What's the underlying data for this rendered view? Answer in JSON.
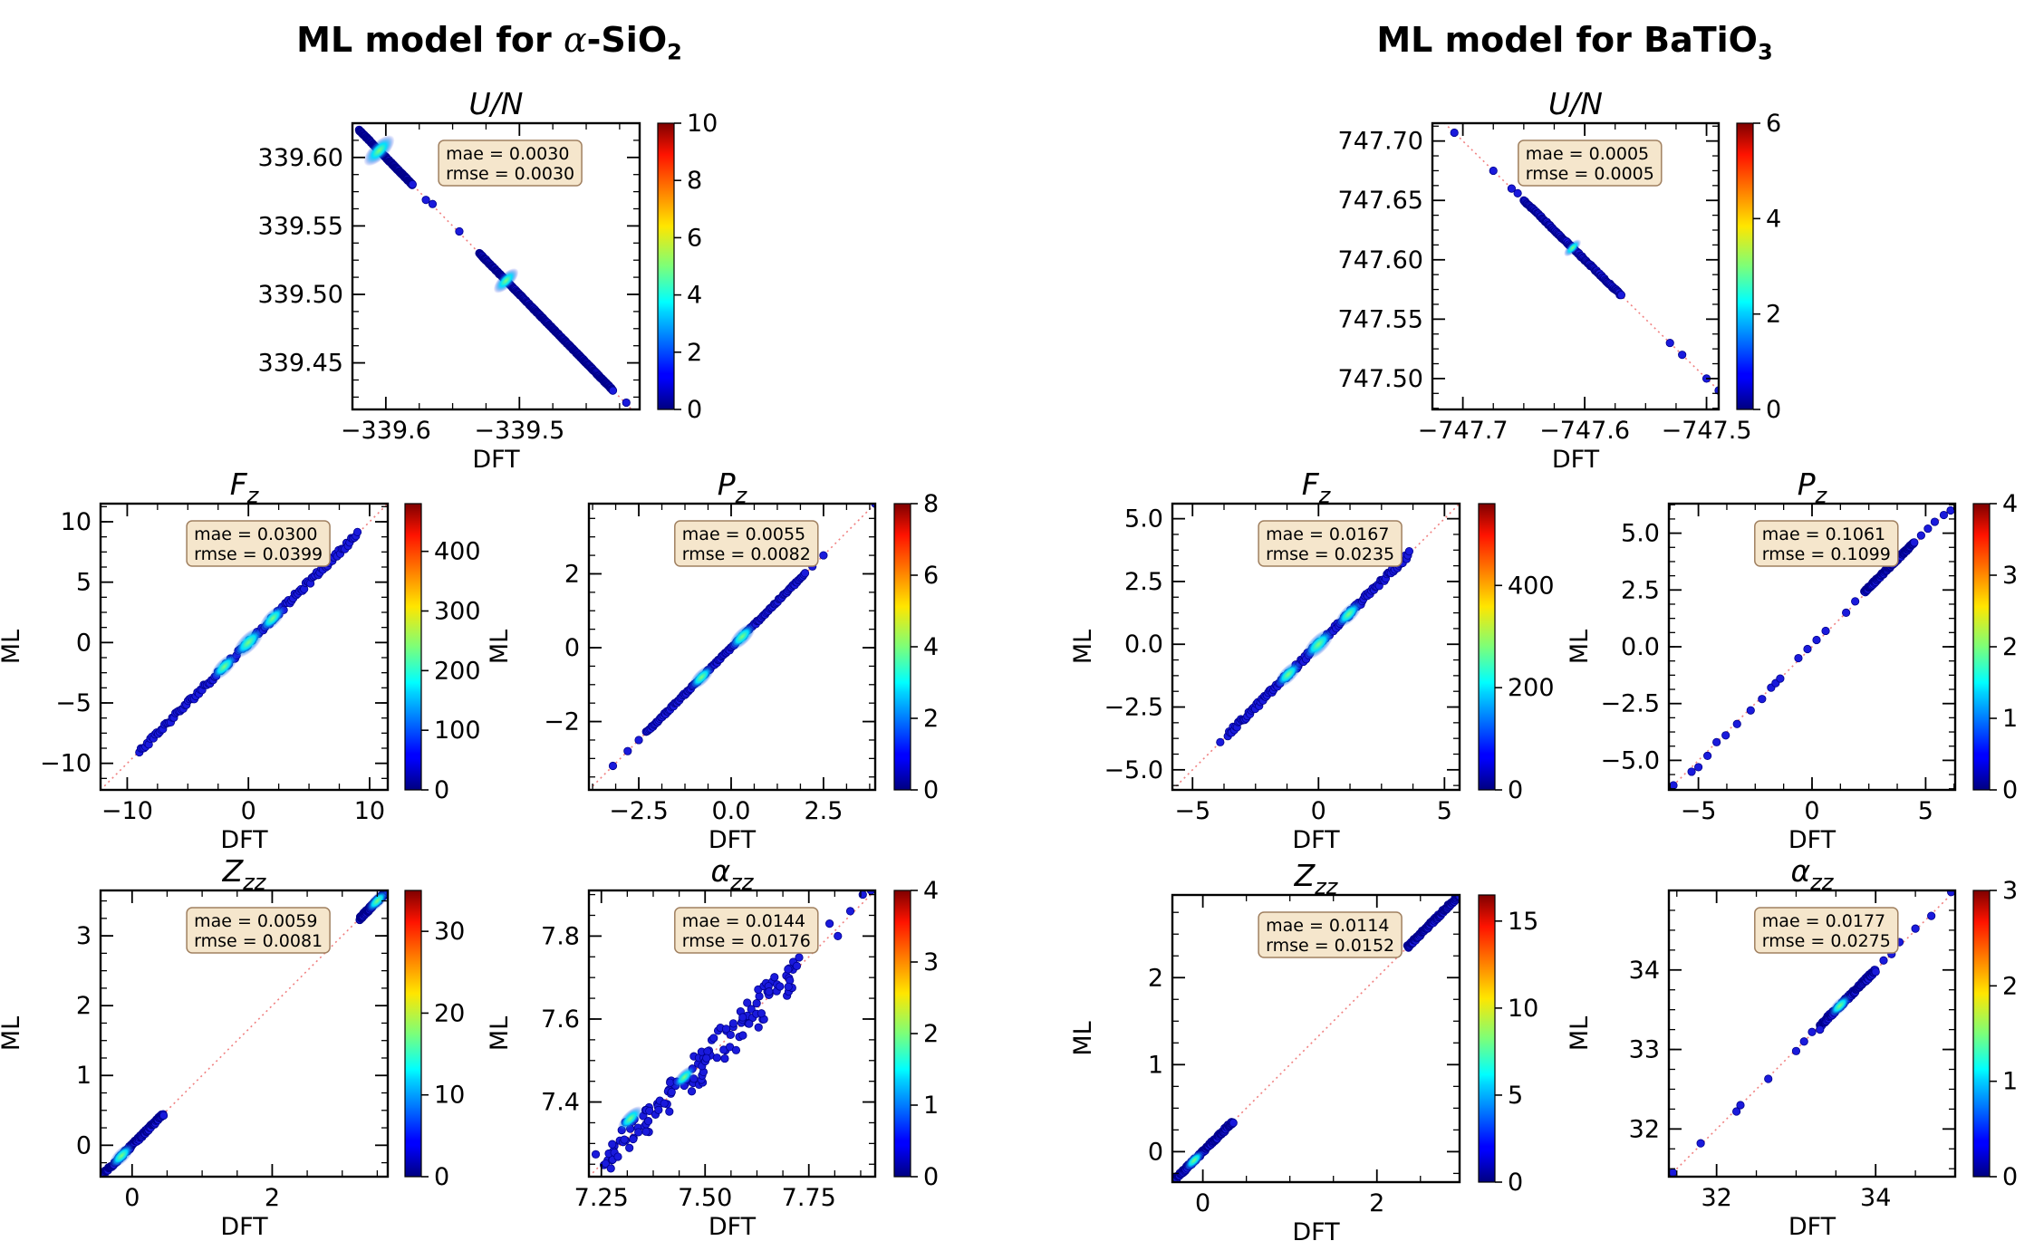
{
  "figure": {
    "headings": [
      {
        "before": "ML model for ",
        "greek": "α",
        "after": "-SiO",
        "sub": "2"
      },
      {
        "before": "ML model for BaTiO",
        "greek": "",
        "after": "",
        "sub": "3"
      }
    ]
  },
  "colors": {
    "cmap": "jet",
    "point_fill": "#1a1adc",
    "point_stroke": "#00008b",
    "identity_line": "#f08080",
    "stats_box_fill": "#f5e6cc",
    "stats_box_stroke": "#a08060"
  },
  "chart_data": [
    {
      "id": "sio2-UN",
      "type": "scatter",
      "title": {
        "main": "U/N",
        "sub": ""
      },
      "xlabel": "DFT",
      "ylabel": "",
      "stats": {
        "mae": "0.0030",
        "rmse": "0.0030"
      },
      "xlim": [
        -339.625,
        -339.41
      ],
      "ylim": [
        -339.416,
        -339.625
      ],
      "xticks": [
        {
          "v": -339.6,
          "label": "−339.6"
        },
        {
          "v": -339.5,
          "label": "−339.5"
        }
      ],
      "yticks": [
        {
          "v": -339.45,
          "label": "339.45"
        },
        {
          "v": -339.5,
          "label": "339.50"
        },
        {
          "v": -339.55,
          "label": "339.55"
        },
        {
          "v": -339.6,
          "label": "339.60"
        }
      ],
      "colorbar": {
        "max": 10,
        "ticks": [
          0,
          2,
          4,
          6,
          8,
          10
        ],
        "label": ""
      },
      "clusters": [
        [
          -339.62,
          -339.62,
          -339.585,
          -339.585
        ],
        [
          -339.6,
          -339.6,
          -339.58,
          -339.58
        ],
        [
          -339.53,
          -339.53,
          -339.49,
          -339.49
        ],
        [
          -339.49,
          -339.49,
          -339.46,
          -339.46
        ],
        [
          -339.46,
          -339.46,
          -339.43,
          -339.43
        ]
      ],
      "points": [
        [
          -339.57,
          -339.569
        ],
        [
          -339.565,
          -339.566
        ],
        [
          -339.545,
          -339.546
        ],
        [
          -339.42,
          -339.421
        ]
      ],
      "density_blobs": [
        [
          -339.605,
          -339.605,
          1.0
        ],
        [
          -339.51,
          -339.51,
          0.7
        ]
      ]
    },
    {
      "id": "sio2-Fz",
      "type": "scatter",
      "title": {
        "main": "F",
        "sub": "z"
      },
      "xlabel": "DFT",
      "ylabel": "ML",
      "stats": {
        "mae": "0.0300",
        "rmse": "0.0399"
      },
      "xlim": [
        -12.2,
        11.5
      ],
      "ylim": [
        -12.2,
        11.5
      ],
      "xticks": [
        {
          "v": -10,
          "label": "−10"
        },
        {
          "v": 0,
          "label": "0"
        },
        {
          "v": 10,
          "label": "10"
        }
      ],
      "yticks": [
        {
          "v": 10,
          "label": "10"
        },
        {
          "v": 5,
          "label": "5"
        },
        {
          "v": 0,
          "label": "0"
        },
        {
          "v": -5,
          "label": "−5"
        },
        {
          "v": -10,
          "label": "−10"
        }
      ],
      "colorbar": {
        "max": 480,
        "ticks": [
          0,
          100,
          200,
          300,
          400
        ],
        "label": ""
      },
      "clusters": [
        [
          -9,
          -9,
          9,
          9
        ]
      ],
      "band_width": 0.45,
      "points": [],
      "density_blobs": [
        [
          0,
          0,
          1.0
        ],
        [
          -2,
          -2,
          0.8
        ],
        [
          2,
          2,
          0.8
        ]
      ]
    },
    {
      "id": "sio2-Pz",
      "type": "scatter",
      "title": {
        "main": "P",
        "sub": "z"
      },
      "xlabel": "DFT",
      "ylabel": "ML",
      "stats": {
        "mae": "0.0055",
        "rmse": "0.0082"
      },
      "xlim": [
        -3.85,
        3.9
      ],
      "ylim": [
        -3.85,
        3.9
      ],
      "xticks": [
        {
          "v": -2.5,
          "label": "−2.5"
        },
        {
          "v": 0,
          "label": "0.0"
        },
        {
          "v": 2.5,
          "label": "2.5"
        }
      ],
      "yticks": [
        {
          "v": 2,
          "label": "2"
        },
        {
          "v": 0,
          "label": "0"
        },
        {
          "v": -2,
          "label": "−2"
        }
      ],
      "colorbar": {
        "max": 8,
        "ticks": [
          0,
          2,
          4,
          6,
          8
        ],
        "label": ""
      },
      "clusters": [
        [
          -2.3,
          -2.3,
          2.0,
          2.0
        ]
      ],
      "band_width": 0.06,
      "points": [
        [
          -3.2,
          -3.2
        ],
        [
          -2.8,
          -2.8
        ],
        [
          -2.5,
          -2.5
        ],
        [
          2.2,
          2.2
        ],
        [
          2.5,
          2.5
        ],
        [
          3.9,
          3.9
        ]
      ],
      "density_blobs": [
        [
          -0.8,
          -0.8,
          0.7
        ],
        [
          0.3,
          0.3,
          0.8
        ]
      ]
    },
    {
      "id": "sio2-Zzz",
      "type": "scatter",
      "title": {
        "main": "Z",
        "sub": "zz"
      },
      "xlabel": "DFT",
      "ylabel": "ML",
      "stats": {
        "mae": "0.0059",
        "rmse": "0.0081"
      },
      "xlim": [
        -0.45,
        3.65
      ],
      "ylim": [
        -0.45,
        3.65
      ],
      "xticks": [
        {
          "v": 0,
          "label": "0"
        },
        {
          "v": 2,
          "label": "2"
        }
      ],
      "yticks": [
        {
          "v": 3,
          "label": "3"
        },
        {
          "v": 2,
          "label": "2"
        },
        {
          "v": 1,
          "label": "1"
        },
        {
          "v": 0,
          "label": "0"
        }
      ],
      "colorbar": {
        "max": 35,
        "ticks": [
          0,
          10,
          20,
          30
        ],
        "label": ""
      },
      "clusters": [
        [
          -0.4,
          -0.4,
          0.45,
          0.45
        ],
        [
          3.25,
          3.25,
          3.65,
          3.65
        ]
      ],
      "band_width": 0.05,
      "points": [],
      "density_blobs": [
        [
          -0.15,
          -0.15,
          0.7
        ],
        [
          3.5,
          3.5,
          0.6
        ]
      ]
    },
    {
      "id": "sio2-azz",
      "type": "scatter",
      "title": {
        "main": "α",
        "sub": "zz"
      },
      "xlabel": "DFT",
      "ylabel": "ML",
      "stats": {
        "mae": "0.0144",
        "rmse": "0.0176"
      },
      "xlim": [
        7.22,
        7.91
      ],
      "ylim": [
        7.22,
        7.91
      ],
      "xticks": [
        {
          "v": 7.25,
          "label": "7.25"
        },
        {
          "v": 7.5,
          "label": "7.50"
        },
        {
          "v": 7.75,
          "label": "7.75"
        }
      ],
      "yticks": [
        {
          "v": 7.8,
          "label": "7.8"
        },
        {
          "v": 7.6,
          "label": "7.6"
        },
        {
          "v": 7.4,
          "label": "7.4"
        }
      ],
      "colorbar": {
        "max": 4,
        "ticks": [
          0,
          1,
          2,
          3,
          4
        ],
        "label": ""
      },
      "clusters": [
        [
          7.25,
          7.25,
          7.72,
          7.72
        ]
      ],
      "band_width": 0.03,
      "scatter_spread": 0.018,
      "points": [
        [
          7.8,
          7.83
        ],
        [
          7.82,
          7.8
        ],
        [
          7.85,
          7.86
        ],
        [
          7.88,
          7.9
        ],
        [
          7.9,
          7.91
        ],
        [
          7.76,
          7.8
        ],
        [
          7.74,
          7.78
        ],
        [
          7.7,
          7.72
        ]
      ],
      "density_blobs": [
        [
          7.32,
          7.36,
          0.7
        ],
        [
          7.45,
          7.46,
          0.6
        ]
      ]
    },
    {
      "id": "bto-UN",
      "type": "scatter",
      "title": {
        "main": "U/N",
        "sub": ""
      },
      "xlabel": "DFT",
      "ylabel": "",
      "stats": {
        "mae": "0.0005",
        "rmse": "0.0005"
      },
      "xlim": [
        -747.725,
        -747.49
      ],
      "ylim": [
        -747.474,
        -747.715
      ],
      "xticks": [
        {
          "v": -747.7,
          "label": "−747.7"
        },
        {
          "v": -747.6,
          "label": "−747.6"
        },
        {
          "v": -747.5,
          "label": "−747.5"
        }
      ],
      "yticks": [
        {
          "v": -747.5,
          "label": "747.50"
        },
        {
          "v": -747.55,
          "label": "747.55"
        },
        {
          "v": -747.6,
          "label": "747.60"
        },
        {
          "v": -747.65,
          "label": "747.65"
        },
        {
          "v": -747.7,
          "label": "747.70"
        }
      ],
      "colorbar": {
        "max": 6,
        "ticks": [
          0,
          2,
          4,
          6
        ],
        "label": ""
      },
      "clusters": [
        [
          -747.65,
          -747.65,
          -747.57,
          -747.57
        ]
      ],
      "band_width": 0.0015,
      "points": [
        [
          -747.707,
          -747.707
        ],
        [
          -747.675,
          -747.675
        ],
        [
          -747.66,
          -747.66
        ],
        [
          -747.655,
          -747.656
        ],
        [
          -747.53,
          -747.53
        ],
        [
          -747.52,
          -747.52
        ],
        [
          -747.5,
          -747.5
        ],
        [
          -747.49,
          -747.49
        ],
        [
          -747.485,
          -747.485
        ]
      ],
      "density_blobs": [
        [
          -747.61,
          -747.61,
          0.3
        ]
      ]
    },
    {
      "id": "bto-Fz",
      "type": "scatter",
      "title": {
        "main": "F",
        "sub": "z"
      },
      "xlabel": "DFT",
      "ylabel": "ML",
      "stats": {
        "mae": "0.0167",
        "rmse": "0.0235"
      },
      "xlim": [
        -5.8,
        5.6
      ],
      "ylim": [
        -5.8,
        5.6
      ],
      "xticks": [
        {
          "v": -5,
          "label": "−5"
        },
        {
          "v": 0,
          "label": "0"
        },
        {
          "v": 5,
          "label": "5"
        }
      ],
      "yticks": [
        {
          "v": 5,
          "label": "5.0"
        },
        {
          "v": 2.5,
          "label": "2.5"
        },
        {
          "v": 0,
          "label": "0.0"
        },
        {
          "v": -2.5,
          "label": "−2.5"
        },
        {
          "v": -5,
          "label": "−5.0"
        }
      ],
      "colorbar": {
        "max": 560,
        "ticks": [
          0,
          200,
          400
        ],
        "label": ""
      },
      "clusters": [
        [
          -3.6,
          -3.6,
          3.6,
          3.6
        ]
      ],
      "band_width": 0.22,
      "points": [
        [
          -3.9,
          -3.9
        ]
      ],
      "density_blobs": [
        [
          0,
          0,
          1.0
        ],
        [
          -1.2,
          -1.2,
          0.8
        ],
        [
          1.2,
          1.2,
          0.8
        ]
      ]
    },
    {
      "id": "bto-Pz",
      "type": "scatter",
      "title": {
        "main": "P",
        "sub": "z"
      },
      "xlabel": "DFT",
      "ylabel": "ML",
      "stats": {
        "mae": "0.1061",
        "rmse": "0.1099"
      },
      "xlim": [
        -6.3,
        6.3
      ],
      "ylim": [
        -6.3,
        6.3
      ],
      "xticks": [
        {
          "v": -5,
          "label": "−5"
        },
        {
          "v": 0,
          "label": "0"
        },
        {
          "v": 5,
          "label": "5"
        }
      ],
      "yticks": [
        {
          "v": 5,
          "label": "5.0"
        },
        {
          "v": 2.5,
          "label": "2.5"
        },
        {
          "v": 0,
          "label": "0.0"
        },
        {
          "v": -2.5,
          "label": "−2.5"
        },
        {
          "v": -5,
          "label": "−5.0"
        }
      ],
      "colorbar": {
        "max": 4,
        "ticks": [
          0,
          1,
          2,
          3,
          4
        ],
        "label": ""
      },
      "clusters": [
        [
          2.3,
          2.4,
          4.5,
          4.6
        ]
      ],
      "band_width": 0.12,
      "points": [
        [
          -6.1,
          -6.1
        ],
        [
          -5.3,
          -5.5
        ],
        [
          -5.0,
          -5.3
        ],
        [
          -4.6,
          -4.8
        ],
        [
          -4.2,
          -4.2
        ],
        [
          -3.8,
          -3.9
        ],
        [
          -3.3,
          -3.4
        ],
        [
          -2.7,
          -2.8
        ],
        [
          -2.2,
          -2.3
        ],
        [
          -1.8,
          -1.8
        ],
        [
          -1.6,
          -1.6
        ],
        [
          -1.4,
          -1.4
        ],
        [
          -0.6,
          -0.5
        ],
        [
          -0.2,
          -0.1
        ],
        [
          0.2,
          0.3
        ],
        [
          0.6,
          0.7
        ],
        [
          1.5,
          1.5
        ],
        [
          1.9,
          2.0
        ],
        [
          4.8,
          4.9
        ],
        [
          5.1,
          5.2
        ],
        [
          5.4,
          5.5
        ],
        [
          5.8,
          5.8
        ],
        [
          6.1,
          6.0
        ]
      ],
      "density_blobs": []
    },
    {
      "id": "bto-Zzz",
      "type": "scatter",
      "title": {
        "main": "Z",
        "sub": "zz"
      },
      "xlabel": "DFT",
      "ylabel": "ML",
      "stats": {
        "mae": "0.0114",
        "rmse": "0.0152"
      },
      "xlim": [
        -0.35,
        2.95
      ],
      "ylim": [
        -0.35,
        2.95
      ],
      "xticks": [
        {
          "v": 0,
          "label": "0"
        },
        {
          "v": 2,
          "label": "2"
        }
      ],
      "yticks": [
        {
          "v": 2,
          "label": "2"
        },
        {
          "v": 1,
          "label": "1"
        },
        {
          "v": 0,
          "label": "0"
        }
      ],
      "colorbar": {
        "max": 16.5,
        "ticks": [
          0,
          5,
          10,
          15
        ],
        "label": ""
      },
      "clusters": [
        [
          -0.35,
          -0.35,
          0.35,
          0.35
        ],
        [
          2.35,
          2.35,
          2.95,
          2.95
        ]
      ],
      "band_width": 0.04,
      "points": [],
      "density_blobs": [
        [
          -0.1,
          -0.1,
          0.5
        ]
      ]
    },
    {
      "id": "bto-azz",
      "type": "scatter",
      "title": {
        "main": "α",
        "sub": "zz"
      },
      "xlabel": "DFT",
      "ylabel": "ML",
      "stats": {
        "mae": "0.0177",
        "rmse": "0.0275"
      },
      "xlim": [
        31.4,
        35.0
      ],
      "ylim": [
        31.4,
        35.0
      ],
      "xticks": [
        {
          "v": 32,
          "label": "32"
        },
        {
          "v": 34,
          "label": "34"
        }
      ],
      "yticks": [
        {
          "v": 34,
          "label": "34"
        },
        {
          "v": 33,
          "label": "33"
        },
        {
          "v": 32,
          "label": "32"
        }
      ],
      "colorbar": {
        "max": 3,
        "ticks": [
          0,
          1,
          2,
          3
        ],
        "label": ""
      },
      "clusters": [
        [
          33.3,
          33.3,
          34.0,
          34.0
        ]
      ],
      "band_width": 0.05,
      "points": [
        [
          31.45,
          31.45
        ],
        [
          31.8,
          31.82
        ],
        [
          32.25,
          32.22
        ],
        [
          32.3,
          32.3
        ],
        [
          32.65,
          32.63
        ],
        [
          33.0,
          32.98
        ],
        [
          33.1,
          33.1
        ],
        [
          33.2,
          33.22
        ],
        [
          33.3,
          33.25
        ],
        [
          34.1,
          34.12
        ],
        [
          34.2,
          34.2
        ],
        [
          34.3,
          34.35
        ],
        [
          34.5,
          34.52
        ],
        [
          34.7,
          34.68
        ],
        [
          34.95,
          34.98
        ]
      ],
      "density_blobs": [
        [
          33.55,
          33.55,
          0.6
        ]
      ]
    }
  ]
}
